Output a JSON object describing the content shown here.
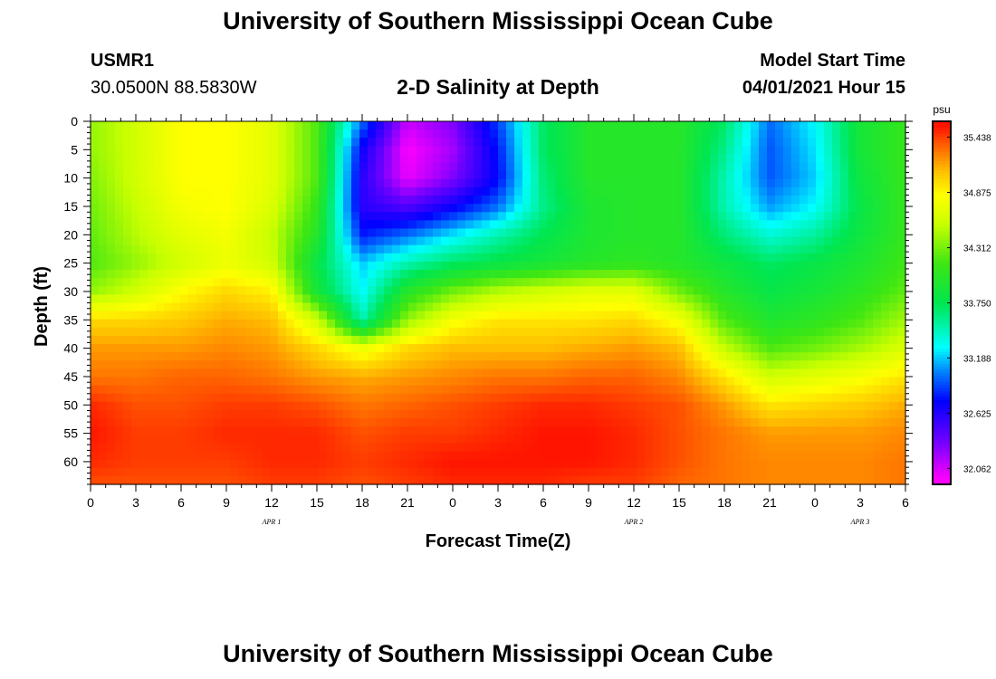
{
  "header": {
    "title": "University of Southern Mississippi Ocean Cube",
    "station_id": "USMR1",
    "station_coords": "30.0500N  88.5830W",
    "subtitle": "2-D Salinity at Depth",
    "model_start_label": "Model Start Time",
    "model_start_value": "04/01/2021 Hour 15"
  },
  "footer": {
    "title": "University of Southern Mississippi Ocean Cube"
  },
  "chart_data": {
    "type": "heatmap",
    "xlabel": "Forecast Time(Z)",
    "ylabel": "Depth (ft)",
    "x_ticks": [
      "0",
      "3",
      "6",
      "9",
      "12",
      "15",
      "18",
      "21",
      "0",
      "3",
      "6",
      "9",
      "12",
      "15",
      "18",
      "21",
      "0",
      "3",
      "6"
    ],
    "x_range_hours": [
      0,
      54
    ],
    "date_labels": [
      {
        "label": "APR 1",
        "hour": 12
      },
      {
        "label": "APR 2",
        "hour": 36
      },
      {
        "label": "APR 3",
        "hour": 51
      }
    ],
    "y_ticks": [
      "0",
      "5",
      "10",
      "15",
      "20",
      "25",
      "30",
      "35",
      "40",
      "45",
      "50",
      "55",
      "60"
    ],
    "y_range_ft": [
      0,
      64
    ],
    "y_inverted": true,
    "colorbar": {
      "unit": "psu",
      "range": [
        31.9,
        35.6
      ],
      "tick_labels": [
        "35.438",
        "34.875",
        "34.312",
        "33.750",
        "33.188",
        "32.625",
        "32.062"
      ],
      "tick_values": [
        35.438,
        34.875,
        34.312,
        33.75,
        33.188,
        32.625,
        32.062
      ]
    },
    "hours": [
      0,
      3,
      6,
      9,
      12,
      15,
      18,
      21,
      24,
      27,
      30,
      33,
      36,
      39,
      42,
      45,
      48,
      51,
      54
    ],
    "depths": [
      0,
      5,
      10,
      15,
      20,
      25,
      30,
      35,
      40,
      45,
      50,
      55,
      60,
      64
    ],
    "salinity": [
      [
        34.4,
        34.6,
        34.85,
        34.85,
        34.7,
        34.2,
        33.0,
        32.1,
        32.3,
        32.9,
        33.7,
        34.0,
        34.0,
        34.0,
        33.7,
        33.0,
        33.3,
        33.9,
        34.1
      ],
      [
        34.4,
        34.6,
        34.85,
        34.85,
        34.7,
        34.2,
        32.7,
        31.95,
        32.2,
        32.8,
        33.7,
        34.0,
        34.0,
        34.0,
        33.6,
        32.95,
        33.25,
        33.9,
        34.1
      ],
      [
        34.35,
        34.6,
        34.85,
        34.85,
        34.7,
        34.2,
        32.6,
        32.0,
        32.3,
        32.75,
        33.65,
        34.0,
        34.0,
        34.0,
        33.5,
        32.95,
        33.2,
        33.85,
        34.1
      ],
      [
        34.3,
        34.55,
        34.8,
        34.85,
        34.65,
        34.1,
        32.6,
        32.45,
        32.7,
        33.0,
        33.6,
        33.95,
        34.0,
        34.0,
        33.5,
        33.1,
        33.3,
        33.8,
        34.1
      ],
      [
        34.25,
        34.5,
        34.7,
        34.8,
        34.55,
        34.0,
        32.8,
        33.0,
        33.25,
        33.5,
        33.75,
        33.95,
        34.0,
        34.0,
        33.65,
        33.4,
        33.55,
        33.85,
        34.1
      ],
      [
        34.2,
        34.4,
        34.6,
        34.75,
        34.6,
        33.8,
        33.2,
        33.5,
        33.7,
        33.8,
        33.9,
        34.0,
        34.05,
        34.0,
        33.85,
        33.7,
        33.8,
        33.95,
        34.15
      ],
      [
        34.4,
        34.6,
        34.85,
        35.0,
        34.9,
        33.9,
        33.3,
        34.0,
        34.3,
        34.5,
        34.6,
        34.7,
        34.7,
        34.3,
        34.0,
        33.8,
        33.9,
        34.05,
        34.25
      ],
      [
        35.0,
        35.0,
        35.05,
        35.15,
        35.1,
        34.6,
        33.5,
        34.4,
        34.8,
        34.95,
        34.95,
        34.95,
        35.0,
        34.8,
        34.2,
        33.95,
        34.05,
        34.2,
        34.45
      ],
      [
        35.2,
        35.2,
        35.2,
        35.25,
        35.2,
        35.0,
        34.75,
        35.0,
        35.1,
        35.1,
        35.1,
        35.15,
        35.2,
        35.1,
        34.55,
        34.2,
        34.3,
        34.45,
        34.65
      ],
      [
        35.3,
        35.3,
        35.35,
        35.35,
        35.3,
        35.2,
        35.15,
        35.2,
        35.25,
        35.3,
        35.3,
        35.35,
        35.35,
        35.25,
        34.95,
        34.6,
        34.7,
        34.8,
        34.95
      ],
      [
        35.5,
        35.4,
        35.4,
        35.45,
        35.45,
        35.4,
        35.3,
        35.35,
        35.4,
        35.45,
        35.5,
        35.5,
        35.45,
        35.4,
        35.2,
        34.95,
        35.0,
        35.05,
        35.15
      ],
      [
        35.55,
        35.45,
        35.45,
        35.5,
        35.5,
        35.5,
        35.4,
        35.45,
        35.45,
        35.5,
        35.55,
        35.55,
        35.5,
        35.4,
        35.3,
        35.2,
        35.2,
        35.2,
        35.25
      ],
      [
        35.5,
        35.45,
        35.45,
        35.45,
        35.5,
        35.5,
        35.45,
        35.5,
        35.55,
        35.55,
        35.55,
        35.55,
        35.5,
        35.4,
        35.3,
        35.25,
        35.25,
        35.25,
        35.3
      ],
      [
        35.4,
        35.4,
        35.4,
        35.4,
        35.45,
        35.45,
        35.4,
        35.45,
        35.5,
        35.5,
        35.5,
        35.45,
        35.45,
        35.35,
        35.3,
        35.25,
        35.25,
        35.25,
        35.3
      ]
    ]
  }
}
